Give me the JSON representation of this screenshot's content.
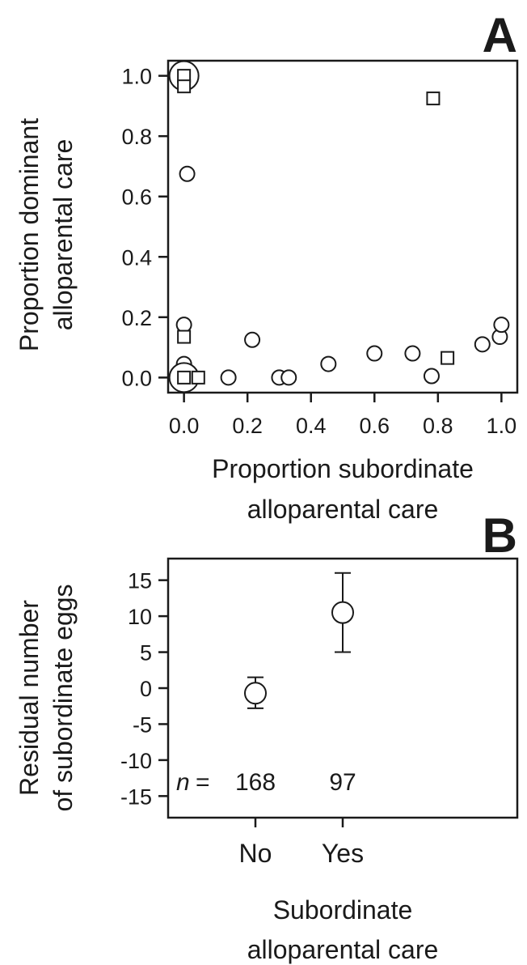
{
  "chart_data": [
    {
      "panel": "A",
      "type": "scatter",
      "xlabel": [
        "Proportion subordinate",
        "alloparental care"
      ],
      "ylabel": [
        "Proportion dominant",
        "alloparental care"
      ],
      "xlim": [
        -0.05,
        1.05
      ],
      "ylim": [
        -0.05,
        1.05
      ],
      "xticks": [
        "0.0",
        "0.2",
        "0.4",
        "0.6",
        "0.8",
        "1.0"
      ],
      "yticks": [
        "0.0",
        "0.2",
        "0.4",
        "0.6",
        "0.8",
        "1.0"
      ],
      "grid": false,
      "legend": "none",
      "points": [
        {
          "shape": "circle",
          "size": "large",
          "x": 0.0,
          "y": 1.0
        },
        {
          "shape": "square",
          "size": "small",
          "x": 0.0,
          "y": 1.0
        },
        {
          "shape": "square",
          "size": "small",
          "x": 0.0,
          "y": 0.965
        },
        {
          "shape": "circle",
          "size": "small",
          "x": 0.01,
          "y": 0.675
        },
        {
          "shape": "circle",
          "size": "small",
          "x": 0.0,
          "y": 0.175
        },
        {
          "shape": "square",
          "size": "small",
          "x": 0.0,
          "y": 0.135
        },
        {
          "shape": "circle",
          "size": "small",
          "x": 0.0,
          "y": 0.045
        },
        {
          "shape": "circle",
          "size": "large",
          "x": 0.0,
          "y": 0.0
        },
        {
          "shape": "square",
          "size": "small",
          "x": 0.0,
          "y": 0.0
        },
        {
          "shape": "square",
          "size": "small",
          "x": 0.045,
          "y": 0.0
        },
        {
          "shape": "circle",
          "size": "small",
          "x": 0.14,
          "y": 0.0
        },
        {
          "shape": "circle",
          "size": "small",
          "x": 0.215,
          "y": 0.125
        },
        {
          "shape": "circle",
          "size": "small",
          "x": 0.3,
          "y": 0.0
        },
        {
          "shape": "circle",
          "size": "small",
          "x": 0.33,
          "y": 0.0
        },
        {
          "shape": "circle",
          "size": "small",
          "x": 0.455,
          "y": 0.045
        },
        {
          "shape": "circle",
          "size": "small",
          "x": 0.6,
          "y": 0.08
        },
        {
          "shape": "circle",
          "size": "small",
          "x": 0.72,
          "y": 0.08
        },
        {
          "shape": "square",
          "size": "small",
          "x": 0.785,
          "y": 0.925
        },
        {
          "shape": "circle",
          "size": "small",
          "x": 0.78,
          "y": 0.005
        },
        {
          "shape": "square",
          "size": "small",
          "x": 0.83,
          "y": 0.065
        },
        {
          "shape": "circle",
          "size": "small",
          "x": 0.94,
          "y": 0.11
        },
        {
          "shape": "circle",
          "size": "small",
          "x": 0.995,
          "y": 0.135
        },
        {
          "shape": "circle",
          "size": "small",
          "x": 1.0,
          "y": 0.175
        }
      ]
    },
    {
      "panel": "B",
      "type": "scatter",
      "xlabel": [
        "Subordinate",
        "alloparental care"
      ],
      "ylabel": [
        "Residual number",
        "of subordinate eggs"
      ],
      "categories": [
        "No",
        "Yes"
      ],
      "ylim": [
        -18,
        18
      ],
      "yticks": [
        "15",
        "10",
        "5",
        "0",
        "-5",
        "-10",
        "-15"
      ],
      "grid": false,
      "legend": "none",
      "values": [
        -0.7,
        10.5
      ],
      "error_low": [
        -2.8,
        5.0
      ],
      "error_high": [
        1.5,
        16.0
      ],
      "n_prefix": "n",
      "n_equals": "=",
      "n_values": [
        "168",
        "97"
      ]
    }
  ]
}
